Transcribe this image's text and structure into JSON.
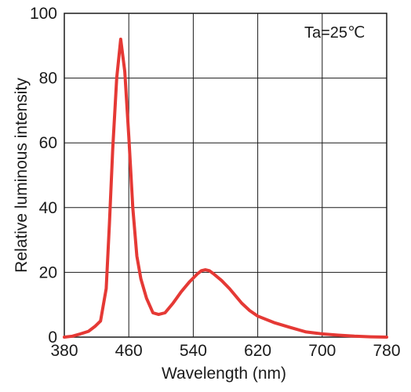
{
  "chart_data": {
    "type": "line",
    "title": "",
    "annotation": "Ta=25℃",
    "xlabel": "Wavelength (nm)",
    "ylabel": "Relative luminous intensity",
    "xlim": [
      380,
      780
    ],
    "ylim": [
      0,
      100
    ],
    "xticks": [
      380,
      460,
      540,
      620,
      700,
      780
    ],
    "yticks": [
      0,
      20,
      40,
      60,
      80,
      100
    ],
    "grid": true,
    "series": [
      {
        "color": "#e53935",
        "x": [
          380,
          390,
          400,
          410,
          418,
          425,
          432,
          436,
          440,
          445,
          450,
          455,
          460,
          465,
          470,
          475,
          482,
          490,
          497,
          505,
          515,
          525,
          535,
          545,
          550,
          555,
          560,
          565,
          575,
          585,
          600,
          610,
          620,
          640,
          660,
          680,
          700,
          720,
          740,
          760,
          780
        ],
        "y": [
          0,
          0.3,
          1,
          1.8,
          3.3,
          5,
          15,
          35,
          58,
          80,
          92,
          82,
          62,
          40,
          25,
          18,
          12,
          7.5,
          7,
          7.5,
          10.5,
          14,
          17,
          19.5,
          20.5,
          20.8,
          20.5,
          19.6,
          17.5,
          15,
          10.5,
          8.2,
          6.5,
          4.5,
          3,
          1.6,
          1,
          0.6,
          0.3,
          0.1,
          0
        ]
      }
    ]
  }
}
